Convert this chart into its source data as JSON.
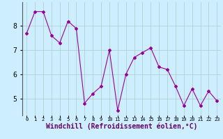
{
  "x": [
    0,
    1,
    2,
    3,
    4,
    5,
    6,
    7,
    8,
    9,
    10,
    11,
    12,
    13,
    14,
    15,
    16,
    17,
    18,
    19,
    20,
    21,
    22,
    23
  ],
  "y": [
    7.7,
    8.6,
    8.6,
    7.6,
    7.3,
    8.2,
    7.9,
    4.8,
    5.2,
    5.5,
    7.0,
    4.5,
    6.0,
    6.7,
    6.9,
    7.1,
    6.3,
    6.2,
    5.5,
    4.7,
    5.4,
    4.7,
    5.3,
    4.9
  ],
  "line_color": "#990099",
  "marker": "D",
  "marker_size": 2.0,
  "bg_color": "#cceeff",
  "grid_color": "#aacccc",
  "xlabel": "Windchill (Refroidissement éolien,°C)",
  "xlabel_fontsize": 7,
  "ylabel_ticks": [
    5,
    6,
    7,
    8
  ],
  "xtick_labels": [
    "0",
    "1",
    "2",
    "3",
    "4",
    "5",
    "6",
    "7",
    "8",
    "9",
    "10",
    "11",
    "12",
    "13",
    "14",
    "15",
    "16",
    "17",
    "18",
    "19",
    "20",
    "21",
    "22",
    "23"
  ],
  "ylim": [
    4.3,
    9.0
  ],
  "xlim": [
    -0.5,
    23.5
  ],
  "ytick_fontsize": 7,
  "xtick_fontsize": 5,
  "left_spine_color": "#555555",
  "xlabel_color": "#660066"
}
